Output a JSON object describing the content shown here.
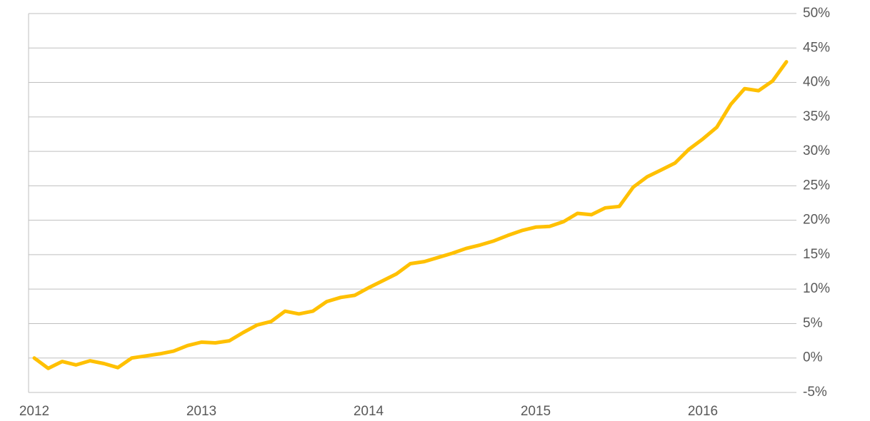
{
  "chart_data": {
    "type": "line",
    "categories": [
      "2012",
      null,
      null,
      null,
      null,
      null,
      null,
      null,
      null,
      null,
      null,
      null,
      "2013",
      null,
      null,
      null,
      null,
      null,
      null,
      null,
      null,
      null,
      null,
      null,
      "2014",
      null,
      null,
      null,
      null,
      null,
      null,
      null,
      null,
      null,
      null,
      null,
      "2015",
      null,
      null,
      null,
      null,
      null,
      null,
      null,
      null,
      null,
      null,
      null,
      "2016",
      null,
      null,
      null,
      null,
      null,
      null
    ],
    "values": [
      0,
      -1.5,
      -0.5,
      -1,
      -0.4,
      -0.8,
      -1.4,
      0,
      0.3,
      0.6,
      1,
      1.8,
      2.3,
      2.2,
      2.5,
      3.7,
      4.8,
      5.3,
      6.8,
      6.4,
      6.8,
      8.2,
      8.8,
      9.1,
      10.2,
      11.2,
      12.2,
      13.7,
      14,
      14.6,
      15.2,
      15.9,
      16.4,
      17,
      17.8,
      18.5,
      19,
      19.1,
      19.8,
      21,
      20.8,
      21.8,
      22,
      24.8,
      26.3,
      27.3,
      28.3,
      30.3,
      31.8,
      33.5,
      36.8,
      39.1,
      38.8,
      40.2,
      43
    ],
    "color": "#ffc000",
    "ylim": [
      -5,
      50
    ],
    "yticks": [
      {
        "value": -5,
        "label": "-5%"
      },
      {
        "value": 0,
        "label": "0%"
      },
      {
        "value": 5,
        "label": "5%"
      },
      {
        "value": 10,
        "label": "10%"
      },
      {
        "value": 15,
        "label": "15%"
      },
      {
        "value": 20,
        "label": "20%"
      },
      {
        "value": 25,
        "label": "25%"
      },
      {
        "value": 30,
        "label": "30%"
      },
      {
        "value": 35,
        "label": "35%"
      },
      {
        "value": 40,
        "label": "40%"
      },
      {
        "value": 45,
        "label": "45%"
      },
      {
        "value": 50,
        "label": "50%"
      }
    ],
    "grid": true
  }
}
